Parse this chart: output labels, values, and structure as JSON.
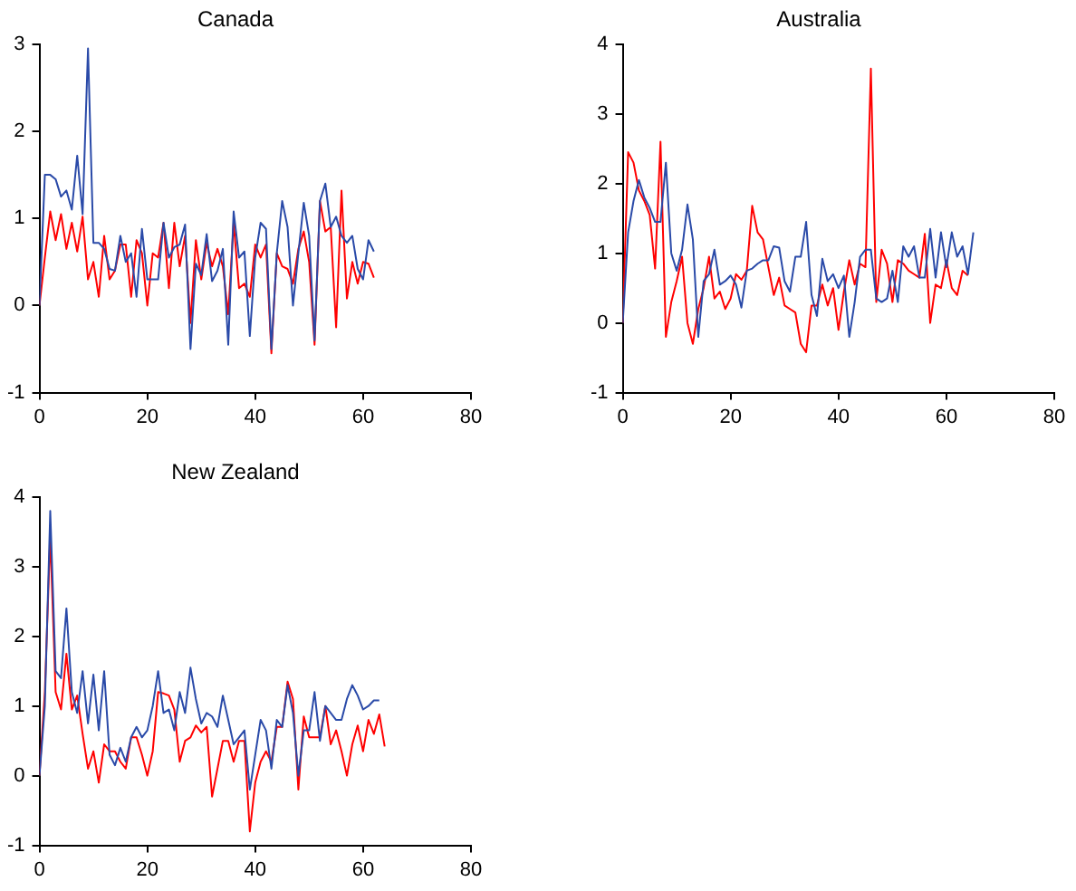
{
  "chart_data": [
    {
      "type": "line",
      "title": "Canada",
      "x": [
        0,
        1,
        2,
        3,
        4,
        5,
        6,
        7,
        8,
        9,
        10,
        11,
        12,
        13,
        14,
        15,
        16,
        17,
        18,
        19,
        20,
        21,
        22,
        23,
        24,
        25,
        26,
        27,
        28,
        29,
        30,
        31,
        32,
        33,
        34,
        35,
        36,
        37,
        38,
        39,
        40,
        41,
        42,
        43,
        44,
        45,
        46,
        47,
        48,
        49,
        50,
        51,
        52,
        53,
        54,
        55,
        56,
        57,
        58,
        59,
        60,
        61,
        62
      ],
      "xlim": [
        0,
        80
      ],
      "xticks": [
        0,
        20,
        40,
        60,
        80
      ],
      "ylim": [
        -1,
        3
      ],
      "yticks": [
        -1,
        0,
        1,
        2,
        3
      ],
      "grid": false,
      "legend": false,
      "marker": "none",
      "line_style": "solid",
      "series": [
        {
          "color": "#2a4aa8",
          "values": [
            0,
            1.5,
            1.5,
            1.45,
            1.25,
            1.32,
            1.1,
            1.72,
            1.05,
            2.95,
            0.72,
            0.72,
            0.65,
            0.42,
            0.4,
            0.8,
            0.5,
            0.6,
            0.1,
            0.88,
            0.3,
            0.3,
            0.3,
            0.95,
            0.55,
            0.67,
            0.7,
            0.93,
            -0.5,
            0.48,
            0.35,
            0.82,
            0.28,
            0.4,
            0.65,
            -0.45,
            1.08,
            0.55,
            0.62,
            -0.35,
            0.55,
            0.95,
            0.88,
            -0.5,
            0.6,
            1.2,
            0.9,
            0,
            0.6,
            1.18,
            0.8,
            -0.4,
            1.2,
            1.4,
            0.9,
            1.02,
            0.8,
            0.72,
            0.8,
            0.42,
            0.3,
            0.75,
            0.62
          ]
        },
        {
          "color": "#ff0000",
          "values": [
            0,
            0.55,
            1.08,
            0.75,
            1.05,
            0.65,
            0.95,
            0.62,
            1.02,
            0.3,
            0.5,
            0.1,
            0.8,
            0.3,
            0.4,
            0.7,
            0.7,
            0.1,
            0.75,
            0.6,
            0,
            0.6,
            0.55,
            0.95,
            0.2,
            0.95,
            0.45,
            0.8,
            -0.2,
            0.75,
            0.3,
            0.72,
            0.45,
            0.65,
            0.45,
            -0.1,
            0.95,
            0.2,
            0.25,
            0.1,
            0.7,
            0.55,
            0.7,
            -0.55,
            0.6,
            0.45,
            0.42,
            0.25,
            0.65,
            0.85,
            0.5,
            -0.45,
            1.2,
            0.85,
            0.9,
            -0.25,
            1.32,
            0.08,
            0.5,
            0.25,
            0.5,
            0.48,
            0.32
          ]
        }
      ]
    },
    {
      "type": "line",
      "title": "Australia",
      "x": [
        0,
        1,
        2,
        3,
        4,
        5,
        6,
        7,
        8,
        9,
        10,
        11,
        12,
        13,
        14,
        15,
        16,
        17,
        18,
        19,
        20,
        21,
        22,
        23,
        24,
        25,
        26,
        27,
        28,
        29,
        30,
        31,
        32,
        33,
        34,
        35,
        36,
        37,
        38,
        39,
        40,
        41,
        42,
        43,
        44,
        45,
        46,
        47,
        48,
        49,
        50,
        51,
        52,
        53,
        54,
        55,
        56,
        57,
        58,
        59,
        60,
        61,
        62,
        63,
        64,
        65
      ],
      "xlim": [
        0,
        80
      ],
      "xticks": [
        0,
        20,
        40,
        60,
        80
      ],
      "ylim": [
        -1,
        4
      ],
      "yticks": [
        -1,
        0,
        1,
        2,
        3,
        4
      ],
      "grid": false,
      "legend": false,
      "marker": "none",
      "line_style": "solid",
      "series": [
        {
          "color": "#2a4aa8",
          "values": [
            0,
            1.3,
            1.75,
            2.05,
            1.8,
            1.65,
            1.45,
            1.45,
            2.3,
            1,
            0.75,
            1.05,
            1.7,
            1.2,
            -0.2,
            0.6,
            0.7,
            1.05,
            0.55,
            0.6,
            0.68,
            0.55,
            0.22,
            0.75,
            0.78,
            0.85,
            0.9,
            0.9,
            1.1,
            1.08,
            0.6,
            0.45,
            0.95,
            0.95,
            1.45,
            0.4,
            0.1,
            0.92,
            0.6,
            0.7,
            0.5,
            0.68,
            -0.2,
            0.3,
            0.95,
            1.05,
            1.05,
            0.35,
            0.3,
            0.35,
            0.75,
            0.3,
            1.1,
            0.95,
            1.1,
            0.65,
            0.65,
            1.35,
            0.65,
            1.3,
            0.8,
            1.3,
            0.95,
            1.1,
            0.7,
            1.3
          ]
        },
        {
          "color": "#ff0000",
          "values": [
            0,
            2.45,
            2.3,
            1.9,
            1.75,
            1.55,
            0.78,
            2.6,
            -0.2,
            0.3,
            0.6,
            0.95,
            0,
            -0.3,
            0.2,
            0.5,
            0.95,
            0.35,
            0.45,
            0.2,
            0.35,
            0.7,
            0.62,
            0.75,
            1.68,
            1.3,
            1.2,
            0.8,
            0.4,
            0.65,
            0.25,
            0.2,
            0.15,
            -0.3,
            -0.42,
            0.25,
            0.25,
            0.55,
            0.25,
            0.5,
            -0.1,
            0.45,
            0.9,
            0.55,
            0.85,
            0.8,
            3.65,
            0.3,
            1.05,
            0.85,
            0.3,
            0.9,
            0.85,
            0.75,
            0.7,
            0.65,
            1.28,
            0,
            0.55,
            0.5,
            0.9,
            0.5,
            0.4,
            0.75,
            0.68,
            null
          ]
        }
      ]
    },
    {
      "type": "line",
      "title": "New Zealand",
      "x": [
        0,
        1,
        2,
        3,
        4,
        5,
        6,
        7,
        8,
        9,
        10,
        11,
        12,
        13,
        14,
        15,
        16,
        17,
        18,
        19,
        20,
        21,
        22,
        23,
        24,
        25,
        26,
        27,
        28,
        29,
        30,
        31,
        32,
        33,
        34,
        35,
        36,
        37,
        38,
        39,
        40,
        41,
        42,
        43,
        44,
        45,
        46,
        47,
        48,
        49,
        50,
        51,
        52,
        53,
        54,
        55,
        56,
        57,
        58,
        59,
        60,
        61,
        62,
        63,
        64
      ],
      "xlim": [
        0,
        80
      ],
      "xticks": [
        0,
        20,
        40,
        60,
        80
      ],
      "ylim": [
        -1,
        4
      ],
      "yticks": [
        -1,
        0,
        1,
        2,
        3,
        4
      ],
      "grid": false,
      "legend": false,
      "marker": "none",
      "line_style": "solid",
      "series": [
        {
          "color": "#2a4aa8",
          "values": [
            0,
            1,
            3.8,
            1.5,
            1.4,
            2.4,
            1.2,
            0.9,
            1.5,
            0.75,
            1.45,
            0.65,
            1.5,
            0.3,
            0.15,
            0.4,
            0.2,
            0.55,
            0.7,
            0.55,
            0.65,
            1,
            1.5,
            0.9,
            0.95,
            0.65,
            1.2,
            0.9,
            1.55,
            1.1,
            0.75,
            0.9,
            0.85,
            0.7,
            1.15,
            0.8,
            0.45,
            0.55,
            0.65,
            -0.2,
            0.3,
            0.8,
            0.65,
            0.1,
            0.8,
            0.7,
            1.3,
            0.9,
            0,
            0.65,
            0.65,
            1.2,
            0.5,
            1,
            0.9,
            0.8,
            0.8,
            1.1,
            1.3,
            1.15,
            0.95,
            1,
            1.08,
            1.08,
            null
          ]
        },
        {
          "color": "#ff0000",
          "values": [
            0,
            1.2,
            3.45,
            1.2,
            0.95,
            1.75,
            0.95,
            1.15,
            0.6,
            0.1,
            0.35,
            -0.1,
            0.45,
            0.35,
            0.35,
            0.2,
            0.1,
            0.55,
            0.55,
            0.3,
            0,
            0.35,
            1.2,
            1.18,
            1.15,
            0.95,
            0.2,
            0.5,
            0.55,
            0.72,
            0.62,
            0.7,
            -0.3,
            0.1,
            0.5,
            0.5,
            0.2,
            0.5,
            0.5,
            -0.8,
            -0.1,
            0.2,
            0.35,
            0.2,
            0.7,
            0.7,
            1.35,
            1.1,
            -0.2,
            0.85,
            0.55,
            0.55,
            0.55,
            1,
            0.45,
            0.65,
            0.35,
            0,
            0.45,
            0.72,
            0.35,
            0.8,
            0.6,
            0.88,
            0.42
          ]
        }
      ]
    }
  ]
}
